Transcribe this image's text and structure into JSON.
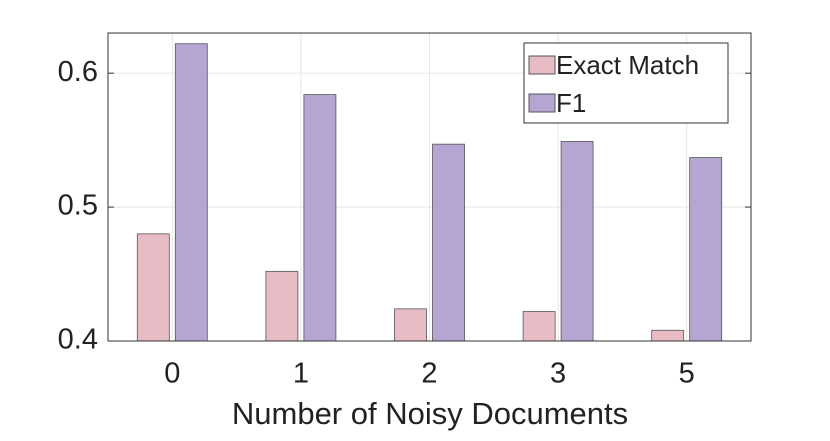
{
  "chart_data": {
    "type": "bar",
    "x_label": "Number of Noisy Documents",
    "categories": [
      "0",
      "1",
      "2",
      "3",
      "5"
    ],
    "series": [
      {
        "name": "Exact Match",
        "color": "#e8bcc5",
        "values": [
          0.48,
          0.452,
          0.424,
          0.422,
          0.408
        ]
      },
      {
        "name": "F1",
        "color": "#b4a5d2",
        "values": [
          0.622,
          0.584,
          0.547,
          0.549,
          0.537
        ]
      }
    ],
    "ylim": [
      0.4,
      0.63
    ],
    "yticks": [
      0.4,
      0.5,
      0.6
    ],
    "grid": true,
    "legend": "top-right"
  }
}
